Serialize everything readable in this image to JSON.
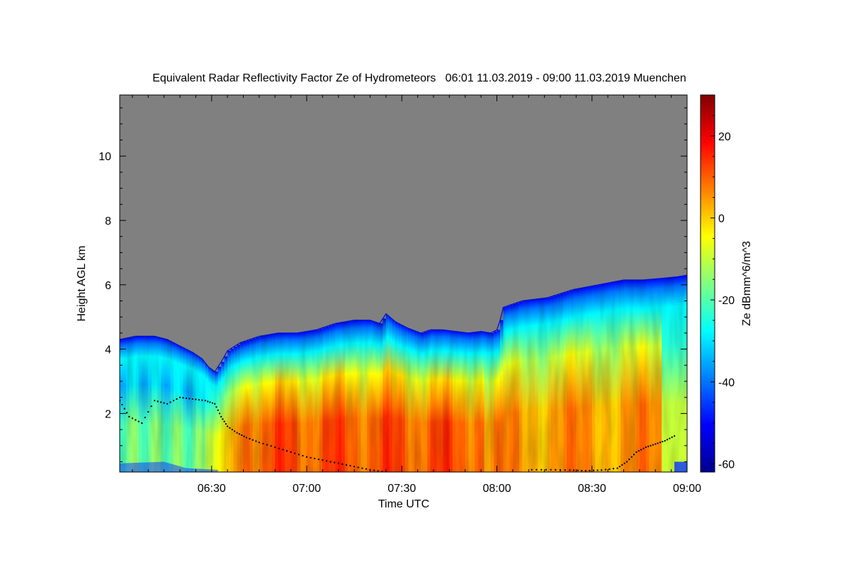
{
  "chart_data": {
    "type": "heatmap",
    "title": "Equivalent Radar Reflectivity Factor Ze of Hydrometeors   06:01 11.03.2019 - 09:00 11.03.2019 Muenchen",
    "xlabel": "Time UTC",
    "ylabel": "Height AGL km",
    "colorbar_label": "Ze dBmm^6/m^3",
    "x_range_minutes": [
      361,
      540
    ],
    "y_range_km": [
      0.18,
      11.9
    ],
    "x_ticks": [
      {
        "minute": 390,
        "label": "06:30"
      },
      {
        "minute": 420,
        "label": "07:00"
      },
      {
        "minute": 450,
        "label": "07:30"
      },
      {
        "minute": 480,
        "label": "08:00"
      },
      {
        "minute": 510,
        "label": "08:30"
      },
      {
        "minute": 540,
        "label": "09:00"
      }
    ],
    "y_ticks": [
      {
        "value": 2,
        "label": "2"
      },
      {
        "value": 4,
        "label": "4"
      },
      {
        "value": 6,
        "label": "6"
      },
      {
        "value": 8,
        "label": "8"
      },
      {
        "value": 10,
        "label": "10"
      }
    ],
    "colorbar_range": [
      -62,
      30
    ],
    "colorbar_ticks": [
      {
        "value": 20,
        "label": "20"
      },
      {
        "value": 0,
        "label": "0"
      },
      {
        "value": -20,
        "label": "-20"
      },
      {
        "value": -40,
        "label": "-40"
      },
      {
        "value": -60,
        "label": "-60"
      }
    ],
    "colormap": "jet",
    "no_data_color": "#808080",
    "echo_top_km": [
      [
        361,
        4.3
      ],
      [
        366,
        4.4
      ],
      [
        372,
        4.4
      ],
      [
        376,
        4.3
      ],
      [
        380,
        4.1
      ],
      [
        384,
        3.9
      ],
      [
        387,
        3.7
      ],
      [
        389,
        3.45
      ],
      [
        391,
        3.3
      ],
      [
        393,
        3.6
      ],
      [
        395,
        3.95
      ],
      [
        399,
        4.2
      ],
      [
        405,
        4.4
      ],
      [
        411,
        4.5
      ],
      [
        417,
        4.5
      ],
      [
        423,
        4.6
      ],
      [
        429,
        4.8
      ],
      [
        435,
        4.9
      ],
      [
        440,
        4.9
      ],
      [
        443,
        4.8
      ],
      [
        445,
        5.1
      ],
      [
        448,
        4.85
      ],
      [
        452,
        4.65
      ],
      [
        456,
        4.5
      ],
      [
        459,
        4.6
      ],
      [
        463,
        4.6
      ],
      [
        467,
        4.55
      ],
      [
        471,
        4.5
      ],
      [
        475,
        4.55
      ],
      [
        478,
        4.5
      ],
      [
        480,
        4.6
      ],
      [
        481,
        4.9
      ],
      [
        482,
        5.3
      ],
      [
        488,
        5.5
      ],
      [
        496,
        5.6
      ],
      [
        504,
        5.85
      ],
      [
        512,
        6.0
      ],
      [
        520,
        6.15
      ],
      [
        526,
        6.15
      ],
      [
        532,
        6.2
      ],
      [
        537,
        6.25
      ],
      [
        540,
        6.3
      ]
    ],
    "cloud_base_km": [
      [
        361,
        2.4
      ],
      [
        364,
        1.9
      ],
      [
        368,
        1.7
      ],
      [
        372,
        2.4
      ],
      [
        376,
        2.3
      ],
      [
        380,
        2.5
      ],
      [
        384,
        2.45
      ],
      [
        388,
        2.4
      ],
      [
        391,
        2.3
      ],
      [
        393,
        1.9
      ],
      [
        395,
        1.6
      ],
      [
        398,
        1.4
      ],
      [
        401,
        1.25
      ],
      [
        405,
        1.1
      ],
      [
        410,
        0.95
      ],
      [
        415,
        0.8
      ],
      [
        420,
        0.65
      ],
      [
        425,
        0.55
      ],
      [
        430,
        0.45
      ],
      [
        435,
        0.35
      ],
      [
        440,
        0.25
      ],
      [
        445,
        0.18
      ],
      [
        491,
        0.25
      ],
      [
        497,
        0.25
      ],
      [
        503,
        0.24
      ],
      [
        508,
        0.22
      ],
      [
        513,
        0.24
      ],
      [
        518,
        0.3
      ],
      [
        521,
        0.5
      ],
      [
        524,
        0.8
      ],
      [
        527,
        0.95
      ],
      [
        530,
        1.05
      ],
      [
        533,
        1.15
      ],
      [
        536,
        1.3
      ]
    ]
  }
}
